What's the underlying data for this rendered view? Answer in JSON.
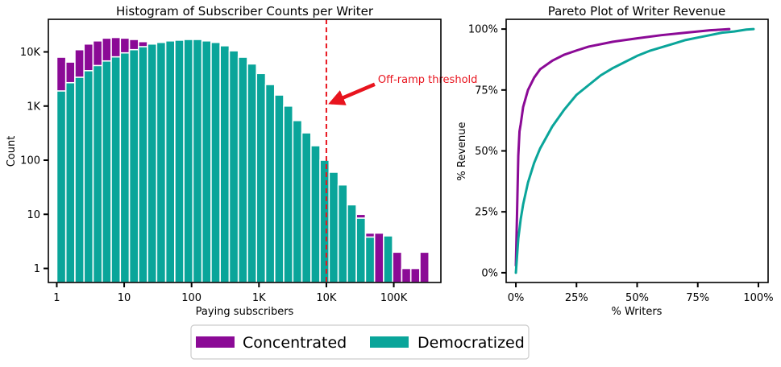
{
  "colors": {
    "concentrated": "#8b0a96",
    "democratized": "#0aa59a",
    "threshold": "#e8141e"
  },
  "legend": {
    "items": [
      {
        "label": "Concentrated"
      },
      {
        "label": "Democratized"
      }
    ]
  },
  "chart_data": [
    {
      "type": "bar",
      "title": "Histogram of Subscriber Counts per Writer",
      "xlabel": "Paying subscribers",
      "ylabel": "Count",
      "xscale": "log",
      "yscale": "log",
      "xlim": [
        0.75,
        500000
      ],
      "ylim": [
        0.55,
        40000
      ],
      "xticks": [
        {
          "v": 1,
          "label": "1"
        },
        {
          "v": 10,
          "label": "10"
        },
        {
          "v": 100,
          "label": "100"
        },
        {
          "v": 1000,
          "label": "1K"
        },
        {
          "v": 10000,
          "label": "10K"
        },
        {
          "v": 100000,
          "label": "100K"
        }
      ],
      "yticks": [
        {
          "v": 1,
          "label": "1"
        },
        {
          "v": 10,
          "label": "10"
        },
        {
          "v": 100,
          "label": "100"
        },
        {
          "v": 1000,
          "label": "1K"
        },
        {
          "v": 10000,
          "label": "10K"
        }
      ],
      "bin_edges_log10": [
        0,
        0.1347,
        0.2694,
        0.4041,
        0.5388,
        0.6735,
        0.8082,
        0.9429,
        1.0776,
        1.2122,
        1.3469,
        1.4816,
        1.6163,
        1.751,
        1.8857,
        2.0204,
        2.1551,
        2.2898,
        2.4245,
        2.5592,
        2.6939,
        2.8286,
        2.9633,
        3.098,
        3.2327,
        3.3673,
        3.502,
        3.6367,
        3.7714,
        3.9061,
        4.0408,
        4.1755,
        4.3102,
        4.4449,
        4.5796,
        4.7143,
        4.849,
        4.9837,
        5.1184,
        5.2531,
        5.3878,
        5.5224
      ],
      "series": [
        {
          "name": "Concentrated",
          "values": [
            8000,
            6500,
            11000,
            14000,
            16000,
            18000,
            18500,
            18000,
            17000,
            15500,
            14500,
            13500,
            12000,
            10000,
            8000,
            6000,
            4500,
            3300,
            2300,
            1500,
            1000,
            680,
            460,
            300,
            210,
            140,
            90,
            70,
            60,
            43,
            35,
            28,
            10,
            10,
            4.5,
            4.5,
            2,
            2,
            1,
            1,
            2
          ]
        },
        {
          "name": "Democratized",
          "values": [
            1900,
            2700,
            3400,
            4500,
            5600,
            6800,
            8100,
            9600,
            11000,
            12500,
            14000,
            15000,
            16000,
            16500,
            17000,
            17000,
            16000,
            15000,
            13000,
            10500,
            8000,
            6000,
            4000,
            2500,
            1600,
            1000,
            540,
            320,
            185,
            100,
            60,
            35,
            15,
            8.5,
            3.8,
            0,
            4,
            0,
            0,
            0,
            0
          ]
        }
      ],
      "annotation": {
        "text": "Off-ramp threshold",
        "threshold_x": 10000,
        "arrow_tip": [
          10000,
          1000
        ]
      }
    },
    {
      "type": "line",
      "title": "Pareto Plot of Writer Revenue",
      "xlabel": "% Writers",
      "ylabel": "% Revenue",
      "xlim": [
        -0.04,
        1.04
      ],
      "ylim": [
        -0.04,
        1.04
      ],
      "xticks": [
        {
          "v": 0,
          "label": "0%"
        },
        {
          "v": 0.25,
          "label": "25%"
        },
        {
          "v": 0.5,
          "label": "50%"
        },
        {
          "v": 0.75,
          "label": "75%"
        },
        {
          "v": 1,
          "label": "100%"
        }
      ],
      "yticks": [
        {
          "v": 0,
          "label": "0%"
        },
        {
          "v": 0.25,
          "label": "25%"
        },
        {
          "v": 0.5,
          "label": "50%"
        },
        {
          "v": 0.75,
          "label": "75%"
        },
        {
          "v": 1,
          "label": "100%"
        }
      ],
      "series": [
        {
          "name": "Concentrated",
          "x": [
            0,
            0.005,
            0.01,
            0.015,
            0.02,
            0.03,
            0.05,
            0.075,
            0.1,
            0.15,
            0.2,
            0.25,
            0.3,
            0.4,
            0.5,
            0.6,
            0.7,
            0.75,
            0.8,
            0.85,
            0.88
          ],
          "y": [
            0.03,
            0.25,
            0.48,
            0.58,
            0.61,
            0.68,
            0.75,
            0.8,
            0.835,
            0.87,
            0.895,
            0.912,
            0.928,
            0.948,
            0.962,
            0.975,
            0.985,
            0.99,
            0.995,
            0.998,
            1.0
          ]
        },
        {
          "name": "Democratized",
          "x": [
            0,
            0.01,
            0.02,
            0.03,
            0.05,
            0.075,
            0.1,
            0.15,
            0.2,
            0.25,
            0.3,
            0.35,
            0.4,
            0.45,
            0.5,
            0.55,
            0.6,
            0.65,
            0.7,
            0.75,
            0.8,
            0.85,
            0.9,
            0.95,
            0.98
          ],
          "y": [
            0,
            0.14,
            0.22,
            0.28,
            0.37,
            0.45,
            0.51,
            0.6,
            0.67,
            0.73,
            0.77,
            0.81,
            0.84,
            0.865,
            0.89,
            0.91,
            0.925,
            0.94,
            0.955,
            0.965,
            0.975,
            0.985,
            0.99,
            0.998,
            1.0
          ]
        }
      ]
    }
  ]
}
